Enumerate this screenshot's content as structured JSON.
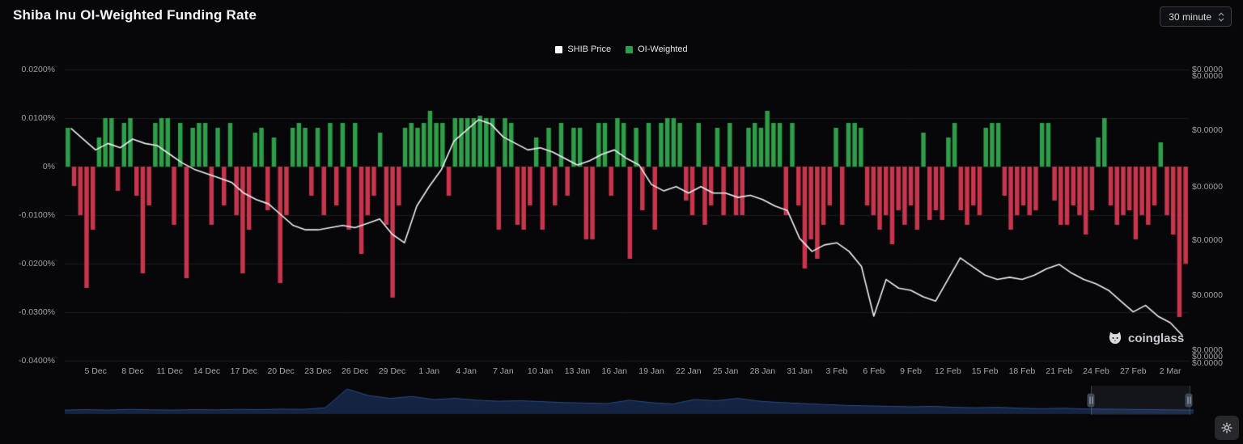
{
  "page": {
    "title": "Shiba Inu OI-Weighted Funding Rate",
    "interval": "30 minute"
  },
  "legend": [
    {
      "label": "SHIB Price",
      "color": "#ffffff"
    },
    {
      "label": "OI-Weighted",
      "color": "#2f9e4a"
    }
  ],
  "axes": {
    "left_ticks": [
      "0.0200%",
      "0.0100%",
      "0%",
      "-0.0100%",
      "-0.0200%",
      "-0.0300%",
      "-0.0400%"
    ],
    "right_ticks": [
      "$0.0000",
      "$0.0000",
      "$0.0000",
      "$0.0000",
      "$0.0000",
      "$0.0000",
      "$0.0000",
      "$0.0000",
      "$0.0000"
    ],
    "x_ticks": [
      "5 Dec",
      "8 Dec",
      "11 Dec",
      "14 Dec",
      "17 Dec",
      "20 Dec",
      "23 Dec",
      "26 Dec",
      "29 Dec",
      "1 Jan",
      "4 Jan",
      "7 Jan",
      "10 Jan",
      "13 Jan",
      "16 Jan",
      "19 Jan",
      "22 Jan",
      "25 Jan",
      "28 Jan",
      "31 Jan",
      "3 Feb",
      "6 Feb",
      "9 Feb",
      "12 Feb",
      "15 Feb",
      "18 Feb",
      "21 Feb",
      "24 Feb",
      "27 Feb",
      "2 Mar"
    ]
  },
  "watermark": "coinglass",
  "chart_data": {
    "type": "mixed",
    "title": "Shiba Inu OI-Weighted Funding Rate",
    "interval": "30 minute",
    "x_range": [
      "3 Dec",
      "3 Mar"
    ],
    "ylim_left_percent": [
      -0.04,
      0.02
    ],
    "colors": {
      "positive": "#2f9e4a",
      "negative": "#c8364d",
      "price": "#eceff1"
    },
    "legend_position": "top-center",
    "grid": "horizontal",
    "series": [
      {
        "name": "OI-Weighted",
        "type": "bar",
        "unit": "percent",
        "values": [
          0.008,
          -0.004,
          -0.01,
          -0.025,
          -0.013,
          0.006,
          0.01,
          0.01,
          -0.005,
          0.009,
          0.01,
          -0.006,
          -0.022,
          -0.008,
          0.009,
          0.01,
          0.01,
          -0.012,
          0.009,
          -0.023,
          0.008,
          0.009,
          0.009,
          -0.012,
          0.008,
          -0.008,
          0.009,
          -0.01,
          -0.022,
          -0.013,
          0.007,
          0.008,
          -0.009,
          0.006,
          -0.024,
          -0.01,
          0.008,
          0.009,
          0.008,
          -0.006,
          0.008,
          -0.01,
          0.009,
          -0.008,
          0.009,
          -0.013,
          0.009,
          -0.018,
          -0.01,
          -0.006,
          0.007,
          -0.012,
          -0.027,
          -0.008,
          0.008,
          0.009,
          0.008,
          0.009,
          0.0115,
          0.009,
          0.009,
          -0.006,
          0.01,
          0.01,
          0.01,
          0.01,
          0.0105,
          0.01,
          0.01,
          -0.013,
          0.01,
          0.009,
          -0.012,
          -0.013,
          -0.008,
          0.006,
          -0.013,
          0.008,
          -0.008,
          0.009,
          -0.006,
          0.008,
          0.008,
          -0.015,
          -0.015,
          0.009,
          0.009,
          -0.006,
          0.01,
          0.009,
          -0.019,
          0.008,
          -0.009,
          0.009,
          -0.013,
          0.009,
          0.01,
          0.01,
          0.009,
          -0.007,
          -0.01,
          0.009,
          -0.012,
          -0.008,
          0.008,
          -0.01,
          0.009,
          -0.01,
          -0.01,
          0.008,
          0.009,
          0.008,
          0.0115,
          0.009,
          0.009,
          -0.01,
          0.009,
          -0.008,
          -0.021,
          -0.015,
          -0.019,
          -0.012,
          -0.008,
          0.008,
          -0.012,
          0.009,
          0.009,
          0.008,
          -0.008,
          -0.01,
          -0.013,
          -0.01,
          -0.016,
          -0.009,
          -0.012,
          -0.008,
          -0.013,
          0.007,
          -0.011,
          -0.009,
          -0.011,
          0.006,
          0.009,
          -0.009,
          -0.012,
          -0.008,
          -0.01,
          0.008,
          0.009,
          0.009,
          -0.006,
          -0.013,
          -0.01,
          -0.008,
          -0.01,
          -0.009,
          0.009,
          0.009,
          -0.007,
          -0.012,
          -0.012,
          -0.008,
          -0.01,
          -0.014,
          -0.009,
          0.006,
          0.01,
          -0.008,
          -0.012,
          -0.01,
          -0.009,
          -0.015,
          -0.01,
          -0.012,
          -0.008,
          0.005,
          -0.01,
          -0.014,
          -0.031,
          -0.02
        ]
      },
      {
        "name": "SHIB Price",
        "type": "line",
        "unit": "USD",
        "values": [
          2.31e-05,
          2.26e-05,
          2.21e-05,
          2.24e-05,
          2.22e-05,
          2.26e-05,
          2.24e-05,
          2.23e-05,
          2.19e-05,
          2.15e-05,
          2.12e-05,
          2.1e-05,
          2.08e-05,
          2.06e-05,
          2.01e-05,
          1.98e-05,
          1.96e-05,
          1.91e-05,
          1.86e-05,
          1.84e-05,
          1.84e-05,
          1.85e-05,
          1.86e-05,
          1.85e-05,
          1.87e-05,
          1.89e-05,
          1.82e-05,
          1.78e-05,
          1.95e-05,
          2.04e-05,
          2.12e-05,
          2.25e-05,
          2.3e-05,
          2.35e-05,
          2.33e-05,
          2.27e-05,
          2.24e-05,
          2.21e-05,
          2.22e-05,
          2.2e-05,
          2.17e-05,
          2.14e-05,
          2.16e-05,
          2.19e-05,
          2.21e-05,
          2.17e-05,
          2.14e-05,
          2.05e-05,
          2.02e-05,
          2.04e-05,
          2.01e-05,
          2.04e-05,
          2.01e-05,
          2.01e-05,
          1.99e-05,
          2e-05,
          1.98e-05,
          1.95e-05,
          1.93e-05,
          1.8e-05,
          1.74e-05,
          1.77e-05,
          1.78e-05,
          1.74e-05,
          1.67e-05,
          1.44e-05,
          1.61e-05,
          1.57e-05,
          1.56e-05,
          1.53e-05,
          1.51e-05,
          1.61e-05,
          1.71e-05,
          1.67e-05,
          1.63e-05,
          1.61e-05,
          1.62e-05,
          1.61e-05,
          1.63e-05,
          1.66e-05,
          1.68e-05,
          1.64e-05,
          1.61e-05,
          1.59e-05,
          1.56e-05,
          1.51e-05,
          1.46e-05,
          1.49e-05,
          1.44e-05,
          1.41e-05,
          1.35e-05
        ]
      }
    ]
  },
  "navigator": {
    "values": [
      0.1,
      0.12,
      0.1,
      0.13,
      0.11,
      0.1,
      0.12,
      0.11,
      0.13,
      0.12,
      0.14,
      0.13,
      0.2,
      1.0,
      0.72,
      0.6,
      0.68,
      0.55,
      0.6,
      0.52,
      0.48,
      0.5,
      0.46,
      0.42,
      0.4,
      0.38,
      0.52,
      0.42,
      0.36,
      0.55,
      0.5,
      0.6,
      0.48,
      0.42,
      0.38,
      0.34,
      0.3,
      0.28,
      0.26,
      0.24,
      0.26,
      0.22,
      0.2,
      0.22,
      0.18,
      0.16,
      0.18,
      0.15,
      0.14,
      0.13,
      0.12,
      0.11,
      0.1
    ],
    "handles": [
      0.909,
      0.996
    ]
  }
}
